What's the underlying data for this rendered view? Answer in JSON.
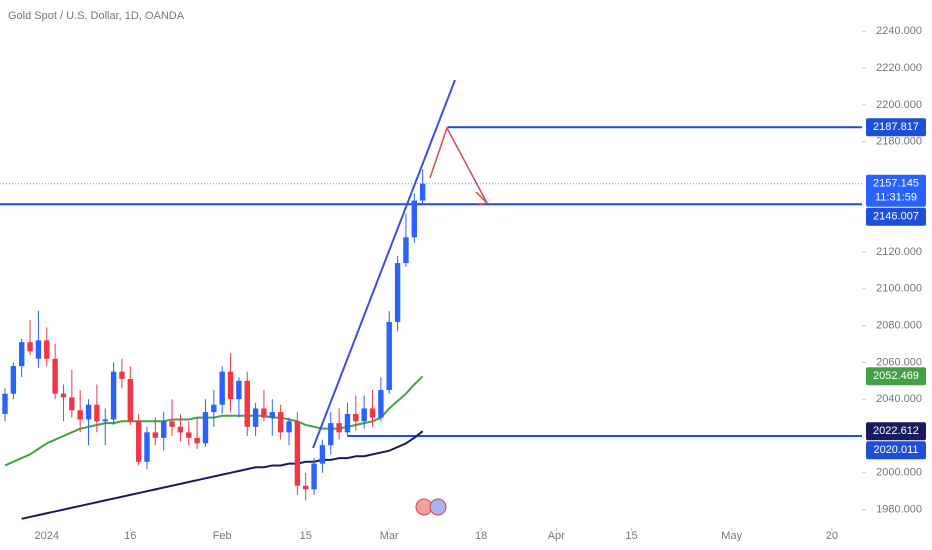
{
  "chart_data": {
    "type": "candlestick",
    "title": "Gold Spot / U.S. Dollar, 1D, OANDA",
    "ylim": [
      1970,
      2257
    ],
    "yticks": [
      {
        "value": 1980,
        "label": "1980.000"
      },
      {
        "value": 2000,
        "label": "2000.000"
      },
      {
        "value": 2040,
        "label": "2040.000"
      },
      {
        "value": 2060,
        "label": "2060.000"
      },
      {
        "value": 2080,
        "label": "2080.000"
      },
      {
        "value": 2100,
        "label": "2100.000"
      },
      {
        "value": 2120,
        "label": "2120.000"
      },
      {
        "value": 2180,
        "label": "2180.000"
      },
      {
        "value": 2200,
        "label": "2200.000"
      },
      {
        "value": 2220,
        "label": "2220.000"
      },
      {
        "value": 2240,
        "label": "2240.000"
      }
    ],
    "xlim": [
      -0.6,
      102.6
    ],
    "xticks": [
      {
        "value": 5,
        "label": "2024"
      },
      {
        "value": 15,
        "label": "16"
      },
      {
        "value": 26,
        "label": "Feb"
      },
      {
        "value": 36,
        "label": "15"
      },
      {
        "value": 46,
        "label": "Mar"
      },
      {
        "value": 57,
        "label": "18"
      },
      {
        "value": 66,
        "label": "Apr"
      },
      {
        "value": 75,
        "label": "15"
      },
      {
        "value": 87,
        "label": "May"
      },
      {
        "value": 99,
        "label": "20"
      }
    ],
    "up_color": "#2962ff",
    "down_color": "#f23645",
    "candles": {
      "open": [
        2032,
        2043,
        2058,
        2071,
        2062,
        2072,
        2062,
        2043,
        2041,
        2034,
        2029,
        2037,
        2028,
        2029,
        2055,
        2051,
        2028,
        2006,
        2022,
        2019,
        2028,
        2025,
        2022,
        2019,
        2016,
        2033,
        2037,
        2055,
        2040,
        2050,
        2025,
        2035,
        2030,
        2033,
        2022,
        2028,
        1993,
        1991,
        2005,
        2015,
        2027,
        2022,
        2032,
        2028,
        2035,
        2030,
        2045,
        2082,
        2114,
        2128,
        2148
      ],
      "high": [
        2046,
        2060,
        2073,
        2083,
        2088,
        2079,
        2070,
        2048,
        2056,
        2045,
        2040,
        2048,
        2035,
        2060,
        2062,
        2058,
        2032,
        2025,
        2030,
        2033,
        2040,
        2032,
        2028,
        2030,
        2040,
        2045,
        2058,
        2065,
        2052,
        2055,
        2038,
        2045,
        2040,
        2037,
        2030,
        2033,
        2000,
        2008,
        2018,
        2033,
        2035,
        2038,
        2042,
        2042,
        2045,
        2052,
        2088,
        2118,
        2141,
        2152,
        2165
      ],
      "low": [
        2028,
        2040,
        2052,
        2064,
        2057,
        2058,
        2040,
        2028,
        2030,
        2022,
        2015,
        2022,
        2015,
        2026,
        2046,
        2026,
        2004,
        2002,
        2015,
        2012,
        2020,
        2017,
        2015,
        2013,
        2014,
        2025,
        2032,
        2033,
        2030,
        2020,
        2020,
        2028,
        2020,
        2018,
        2015,
        1988,
        1985,
        1988,
        2000,
        2010,
        2018,
        2020,
        2023,
        2024,
        2025,
        2028,
        2043,
        2077,
        2112,
        2125,
        2146
      ],
      "close": [
        2043,
        2058,
        2071,
        2066,
        2072,
        2062,
        2043,
        2041,
        2034,
        2029,
        2037,
        2028,
        2029,
        2055,
        2051,
        2028,
        2006,
        2022,
        2019,
        2028,
        2025,
        2022,
        2019,
        2016,
        2033,
        2037,
        2055,
        2040,
        2050,
        2025,
        2035,
        2030,
        2033,
        2022,
        2028,
        1993,
        1991,
        2005,
        2015,
        2027,
        2022,
        2032,
        2028,
        2035,
        2030,
        2045,
        2082,
        2114,
        2128,
        2148,
        2157.145
      ]
    },
    "moving_averages": [
      {
        "color": "#43a047",
        "values": [
          2004,
          2006,
          2008,
          2010,
          2013,
          2016,
          2018,
          2020,
          2022,
          2024,
          2025,
          2026,
          2027,
          2027,
          2028,
          2028,
          2028,
          2028,
          2028,
          2028,
          2029,
          2029,
          2029,
          2030,
          2030,
          2030,
          2031,
          2031,
          2031,
          2031,
          2031,
          2031,
          2030,
          2030,
          2029,
          2028,
          2026,
          2025,
          2024,
          2024,
          2024,
          2025,
          2026,
          2027,
          2028,
          2030,
          2035,
          2039,
          2043,
          2048,
          2052.469
        ],
        "label_color": "#43a047"
      },
      {
        "color": "#1a1a5e",
        "values": [
          null,
          null,
          1975,
          1976,
          1977,
          1978,
          1979,
          1980,
          1981,
          1982,
          1983,
          1984,
          1985,
          1986,
          1987,
          1988,
          1989,
          1990,
          1991,
          1992,
          1993,
          1994,
          1995,
          1996,
          1997,
          1998,
          1999,
          2000,
          2001,
          2002,
          2003,
          2003,
          2004,
          2004,
          2005,
          2005,
          2006,
          2006,
          2007,
          2007,
          2008,
          2008,
          2009,
          2009,
          2010,
          2011,
          2012,
          2014,
          2016,
          2019,
          2022.612
        ],
        "label_color": "#1a1a5e"
      }
    ],
    "horizontal_lines": [
      {
        "value": 2187.817,
        "color": "#1e4fd8",
        "from": 53
      },
      {
        "value": 2146.007,
        "color": "#1e4fd8",
        "from": -0.6
      },
      {
        "value": 2020.011,
        "color": "#1e4fd8",
        "from": 41
      }
    ],
    "last_price": 2157.145,
    "countdown": "11:31:59",
    "last_price_color": "#2962ff"
  }
}
